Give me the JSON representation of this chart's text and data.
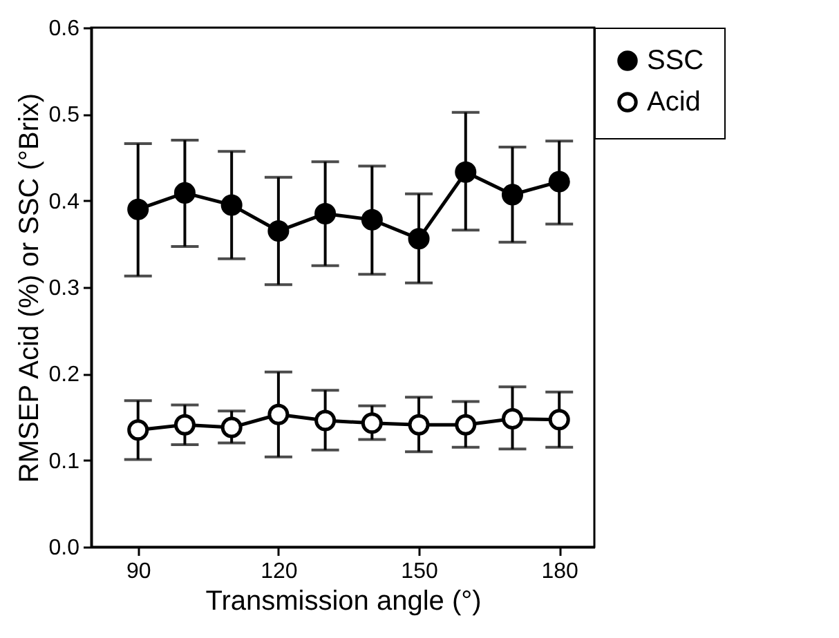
{
  "chart_data": {
    "type": "line",
    "xlabel": "Transmission angle (°)",
    "ylabel": "RMSEP Acid (%) or SSC (°Brix)",
    "x": [
      90,
      100,
      110,
      120,
      130,
      140,
      150,
      160,
      170,
      180
    ],
    "series": [
      {
        "name": "SSC",
        "color": "#000000",
        "values": [
          0.39,
          0.409,
          0.395,
          0.365,
          0.385,
          0.378,
          0.356,
          0.433,
          0.407,
          0.422
        ],
        "errors": [
          [
            0.313,
            0.466
          ],
          [
            0.347,
            0.47
          ],
          [
            0.333,
            0.457
          ],
          [
            0.303,
            0.427
          ],
          [
            0.325,
            0.445
          ],
          [
            0.315,
            0.44
          ],
          [
            0.305,
            0.408
          ],
          [
            0.366,
            0.502
          ],
          [
            0.352,
            0.462
          ],
          [
            0.373,
            0.469
          ]
        ]
      },
      {
        "name": "Acid",
        "color": "#000000",
        "values": [
          0.135,
          0.141,
          0.138,
          0.153,
          0.146,
          0.143,
          0.141,
          0.141,
          0.148,
          0.147
        ],
        "errors": [
          [
            0.101,
            0.169
          ],
          [
            0.118,
            0.164
          ],
          [
            0.12,
            0.157
          ],
          [
            0.104,
            0.202
          ],
          [
            0.112,
            0.181
          ],
          [
            0.124,
            0.163
          ],
          [
            0.11,
            0.173
          ],
          [
            0.115,
            0.168
          ],
          [
            0.113,
            0.185
          ],
          [
            0.115,
            0.179
          ]
        ]
      }
    ],
    "xlim": [
      80,
      187.5
    ],
    "xticks": [
      90,
      120,
      150,
      180
    ],
    "ylim": [
      0,
      0.6
    ],
    "yticks": [
      {
        "value": 0,
        "label": "0.0"
      },
      {
        "value": 0.1,
        "label": "0.1"
      },
      {
        "value": 0.2,
        "label": "0.2"
      },
      {
        "value": 0.3,
        "label": "0.3"
      },
      {
        "value": 0.4,
        "label": "0.4"
      },
      {
        "value": 0.5,
        "label": "0.5"
      },
      {
        "value": 0.6,
        "label": "0.6"
      }
    ],
    "grid": false,
    "legend": "top right",
    "marker": "circle",
    "line_style": "solid"
  }
}
